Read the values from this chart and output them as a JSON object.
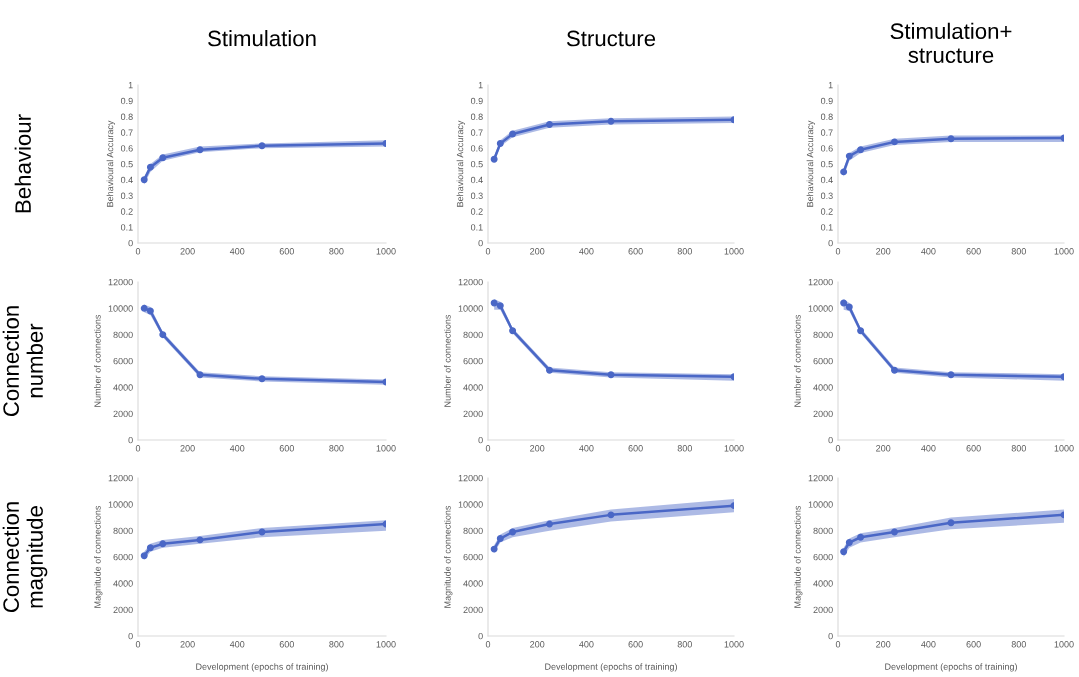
{
  "chart_data": [
    {
      "type": "line",
      "title": "Stimulation",
      "annotations": [
        "Behaviour"
      ],
      "ylabel": "Behavioural Accuracy",
      "x": [
        25,
        50,
        100,
        250,
        500,
        1000
      ],
      "xlim": [
        0,
        1000
      ],
      "xticks": [
        0,
        200,
        400,
        600,
        800,
        1000
      ],
      "ylim": [
        0,
        1
      ],
      "yticks": [
        0,
        0.1,
        0.2,
        0.3,
        0.4,
        0.5,
        0.6,
        0.7,
        0.8,
        0.9,
        1
      ],
      "marker": "circle",
      "line_style": "solid",
      "grid": false,
      "legend": false,
      "series": [
        {
          "color": "#4a67c6",
          "values": [
            0.4,
            0.48,
            0.54,
            0.59,
            0.615,
            0.63
          ],
          "lower": [
            0.37,
            0.45,
            0.52,
            0.575,
            0.6,
            0.61
          ],
          "upper": [
            0.42,
            0.5,
            0.56,
            0.61,
            0.63,
            0.65
          ]
        }
      ]
    },
    {
      "type": "line",
      "title": "Structure",
      "ylabel": "Behavioural Accuracy",
      "x": [
        25,
        50,
        100,
        250,
        500,
        1000
      ],
      "xlim": [
        0,
        1000
      ],
      "xticks": [
        0,
        200,
        400,
        600,
        800,
        1000
      ],
      "ylim": [
        0,
        1
      ],
      "yticks": [
        0,
        0.1,
        0.2,
        0.3,
        0.4,
        0.5,
        0.6,
        0.7,
        0.8,
        0.9,
        1
      ],
      "marker": "circle",
      "line_style": "solid",
      "grid": false,
      "legend": false,
      "series": [
        {
          "color": "#4a67c6",
          "values": [
            0.53,
            0.63,
            0.69,
            0.75,
            0.77,
            0.78
          ],
          "lower": [
            0.51,
            0.61,
            0.67,
            0.73,
            0.75,
            0.76
          ],
          "upper": [
            0.55,
            0.65,
            0.71,
            0.77,
            0.79,
            0.8
          ]
        }
      ]
    },
    {
      "type": "line",
      "title": "Stimulation+\nstructure",
      "ylabel": "Behavioural Accuracy",
      "x": [
        25,
        50,
        100,
        250,
        500,
        1000
      ],
      "xlim": [
        0,
        1000
      ],
      "xticks": [
        0,
        200,
        400,
        600,
        800,
        1000
      ],
      "ylim": [
        0,
        1
      ],
      "yticks": [
        0,
        0.1,
        0.2,
        0.3,
        0.4,
        0.5,
        0.6,
        0.7,
        0.8,
        0.9,
        1
      ],
      "marker": "circle",
      "line_style": "solid",
      "grid": false,
      "legend": false,
      "series": [
        {
          "color": "#4a67c6",
          "values": [
            0.45,
            0.55,
            0.59,
            0.64,
            0.66,
            0.665
          ],
          "lower": [
            0.42,
            0.52,
            0.57,
            0.62,
            0.64,
            0.64
          ],
          "upper": [
            0.47,
            0.57,
            0.61,
            0.66,
            0.68,
            0.68
          ]
        }
      ]
    },
    {
      "type": "line",
      "annotations": [
        "Connection\nnumber"
      ],
      "ylabel": "Number of connections",
      "x": [
        25,
        50,
        100,
        250,
        500,
        1000
      ],
      "xlim": [
        0,
        1000
      ],
      "xticks": [
        0,
        200,
        400,
        600,
        800,
        1000
      ],
      "ylim": [
        0,
        12000
      ],
      "yticks": [
        0,
        2000,
        4000,
        6000,
        8000,
        10000,
        12000
      ],
      "marker": "circle",
      "line_style": "solid",
      "grid": false,
      "legend": false,
      "series": [
        {
          "color": "#4a67c6",
          "values": [
            10000,
            9800,
            8000,
            4950,
            4650,
            4400
          ],
          "lower": [
            9700,
            9500,
            7800,
            4750,
            4450,
            4200
          ],
          "upper": [
            10300,
            10100,
            8200,
            5150,
            4850,
            4600
          ]
        }
      ]
    },
    {
      "type": "line",
      "ylabel": "Number of connections",
      "x": [
        25,
        50,
        100,
        250,
        500,
        1000
      ],
      "xlim": [
        0,
        1000
      ],
      "xticks": [
        0,
        200,
        400,
        600,
        800,
        1000
      ],
      "ylim": [
        0,
        12000
      ],
      "yticks": [
        0,
        2000,
        4000,
        6000,
        8000,
        10000,
        12000
      ],
      "marker": "circle",
      "line_style": "solid",
      "grid": false,
      "legend": false,
      "series": [
        {
          "color": "#4a67c6",
          "values": [
            10400,
            10200,
            8300,
            5300,
            4950,
            4800
          ],
          "lower": [
            9900,
            9900,
            8100,
            5100,
            4750,
            4500
          ],
          "upper": [
            10700,
            10500,
            8500,
            5500,
            5150,
            5000
          ]
        }
      ]
    },
    {
      "type": "line",
      "ylabel": "Number of connections",
      "x": [
        25,
        50,
        100,
        250,
        500,
        1000
      ],
      "xlim": [
        0,
        1000
      ],
      "xticks": [
        0,
        200,
        400,
        600,
        800,
        1000
      ],
      "ylim": [
        0,
        12000
      ],
      "yticks": [
        0,
        2000,
        4000,
        6000,
        8000,
        10000,
        12000
      ],
      "marker": "circle",
      "line_style": "solid",
      "grid": false,
      "legend": false,
      "series": [
        {
          "color": "#4a67c6",
          "values": [
            10400,
            10100,
            8300,
            5300,
            4950,
            4800
          ],
          "lower": [
            9900,
            9800,
            8100,
            5100,
            4750,
            4500
          ],
          "upper": [
            10700,
            10400,
            8500,
            5500,
            5150,
            5000
          ]
        }
      ]
    },
    {
      "type": "line",
      "annotations": [
        "Connection\nmagnitude"
      ],
      "xlabel": "Development (epochs of training)",
      "ylabel": "Magnitude of connections",
      "x": [
        25,
        50,
        100,
        250,
        500,
        1000
      ],
      "xlim": [
        0,
        1000
      ],
      "xticks": [
        0,
        200,
        400,
        600,
        800,
        1000
      ],
      "ylim": [
        0,
        12000
      ],
      "yticks": [
        0,
        2000,
        4000,
        6000,
        8000,
        10000,
        12000
      ],
      "marker": "circle",
      "line_style": "solid",
      "grid": false,
      "legend": false,
      "series": [
        {
          "color": "#4a67c6",
          "values": [
            6100,
            6700,
            7000,
            7300,
            7900,
            8500
          ],
          "lower": [
            5800,
            6400,
            6700,
            7000,
            7500,
            8000
          ],
          "upper": [
            6400,
            7000,
            7300,
            7600,
            8200,
            8800
          ]
        }
      ]
    },
    {
      "type": "line",
      "xlabel": "Development (epochs of training)",
      "ylabel": "Magnitude of connections",
      "x": [
        25,
        50,
        100,
        250,
        500,
        1000
      ],
      "xlim": [
        0,
        1000
      ],
      "xticks": [
        0,
        200,
        400,
        600,
        800,
        1000
      ],
      "ylim": [
        0,
        12000
      ],
      "yticks": [
        0,
        2000,
        4000,
        6000,
        8000,
        10000,
        12000
      ],
      "marker": "circle",
      "line_style": "solid",
      "grid": false,
      "legend": false,
      "series": [
        {
          "color": "#4a67c6",
          "values": [
            6600,
            7400,
            7900,
            8500,
            9200,
            9900
          ],
          "lower": [
            6300,
            7100,
            7500,
            8000,
            8700,
            9400
          ],
          "upper": [
            6900,
            7700,
            8200,
            8800,
            9600,
            10400
          ]
        }
      ]
    },
    {
      "type": "line",
      "xlabel": "Development (epochs of training)",
      "ylabel": "Magnitude of connections",
      "x": [
        25,
        50,
        100,
        250,
        500,
        1000
      ],
      "xlim": [
        0,
        1000
      ],
      "xticks": [
        0,
        200,
        400,
        600,
        800,
        1000
      ],
      "ylim": [
        0,
        12000
      ],
      "yticks": [
        0,
        2000,
        4000,
        6000,
        8000,
        10000,
        12000
      ],
      "marker": "circle",
      "line_style": "solid",
      "grid": false,
      "legend": false,
      "series": [
        {
          "color": "#4a67c6",
          "values": [
            6400,
            7100,
            7500,
            7900,
            8600,
            9200
          ],
          "lower": [
            6000,
            6700,
            7100,
            7500,
            8100,
            8600
          ],
          "upper": [
            6700,
            7400,
            7800,
            8200,
            9000,
            9600
          ]
        }
      ]
    }
  ]
}
